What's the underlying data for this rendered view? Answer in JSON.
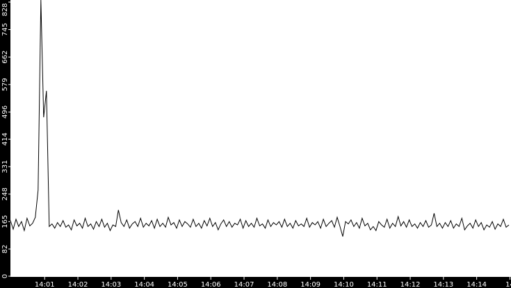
{
  "chart_data": {
    "type": "line",
    "title": "",
    "xlabel": "",
    "ylabel": "",
    "ylim": [
      0,
      828
    ],
    "xlim_minutes": [
      "14:00",
      "14:15"
    ],
    "sample_interval_seconds": 5,
    "yticks": [
      "0",
      "82",
      "165",
      "248",
      "331",
      "414",
      "496",
      "579",
      "662",
      "745",
      "828"
    ],
    "xticks": [
      "14:01",
      "14:02",
      "14:03",
      "14:04",
      "14:05",
      "14:06",
      "14:07",
      "14:08",
      "14:09",
      "14:10",
      "14:11",
      "14:12",
      "14:13",
      "14:14",
      "14"
    ],
    "grid": false,
    "colors": {
      "line": "#000000",
      "axis_band": "#000000",
      "axis_text": "#ffffff",
      "background": "#ffffff"
    },
    "series": [
      {
        "values": [
          168,
          142,
          172,
          150,
          165,
          138,
          175,
          152,
          160,
          178,
          260,
          880,
          480,
          560,
          150,
          158,
          145,
          162,
          150,
          168,
          148,
          155,
          140,
          170,
          152,
          160,
          145,
          175,
          150,
          158,
          142,
          165,
          150,
          172,
          148,
          160,
          138,
          155,
          150,
          200,
          162,
          150,
          170,
          145,
          158,
          165,
          150,
          175,
          148,
          160,
          152,
          168,
          145,
          172,
          150,
          160,
          148,
          178,
          155,
          162,
          145,
          170,
          150,
          165,
          158,
          148,
          172,
          150,
          160,
          145,
          168,
          152,
          175,
          150,
          162,
          140,
          158,
          170,
          150,
          165,
          148,
          160,
          155,
          172,
          145,
          168,
          150,
          160,
          148,
          175,
          152,
          158,
          145,
          170,
          150,
          162,
          155,
          165,
          148,
          172,
          150,
          160,
          145,
          168,
          152,
          158,
          150,
          175,
          148,
          162,
          155,
          165,
          145,
          172,
          150,
          160,
          168,
          148,
          178,
          150,
          120,
          165,
          158,
          170,
          150,
          162,
          145,
          175,
          152,
          160,
          140,
          150,
          138,
          165,
          155,
          148,
          172,
          145,
          160,
          150,
          180,
          152,
          165,
          148,
          170,
          150,
          158,
          145,
          162,
          150,
          168,
          148,
          155,
          190,
          150,
          160,
          145,
          162,
          150,
          168,
          145,
          158,
          150,
          175,
          140,
          152,
          160,
          145,
          170,
          150,
          162,
          140,
          155,
          148,
          165,
          142,
          158,
          150,
          172,
          148,
          155
        ]
      }
    ]
  }
}
